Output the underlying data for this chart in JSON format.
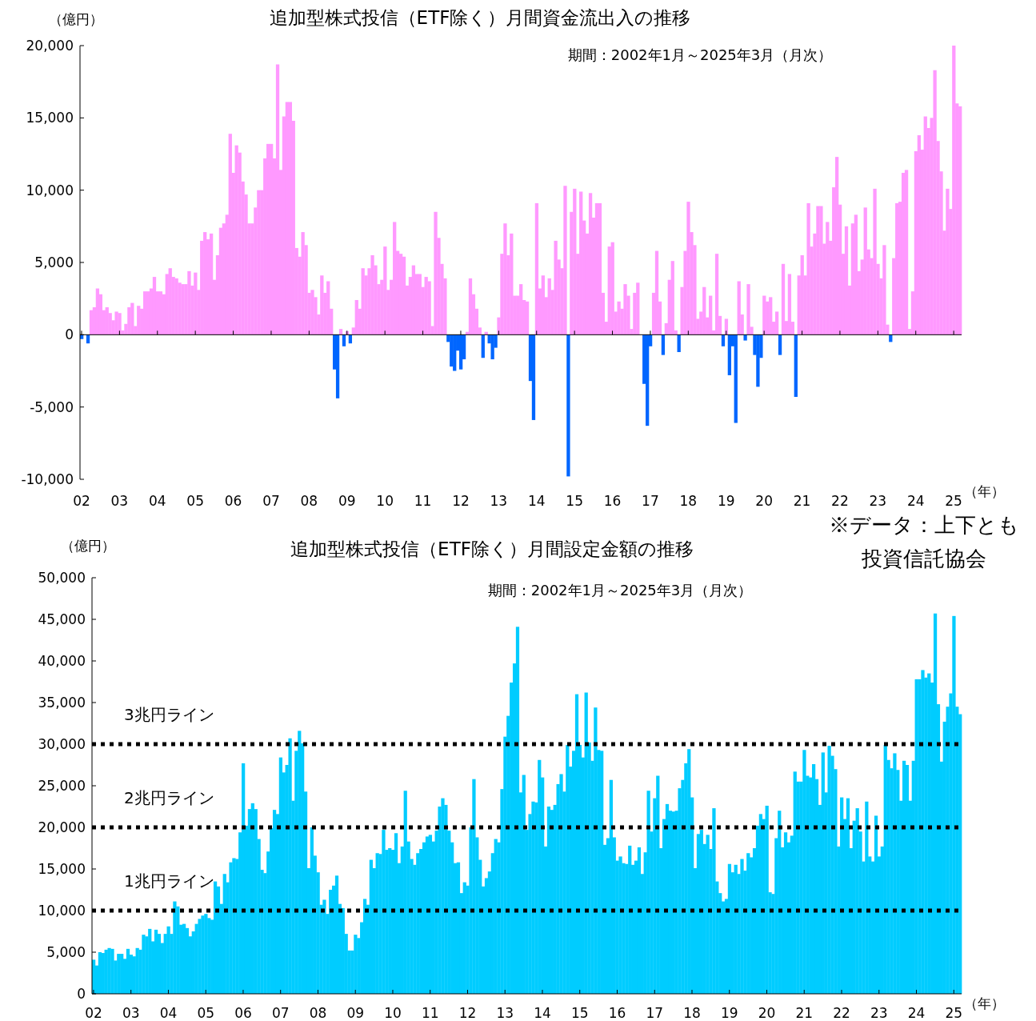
{
  "chart_data": [
    {
      "type": "bar",
      "title": "追加型株式投信（ETF除く）月間資金流出入の推移",
      "subtitle": "期間：2002年1月～2025年3月（月次）",
      "ylabel": "（億円）",
      "xlabel": "（年）",
      "categories": [
        "02",
        null,
        null,
        null,
        null,
        null,
        null,
        null,
        null,
        null,
        null,
        null,
        "03",
        null,
        null,
        null,
        null,
        null,
        null,
        null,
        null,
        null,
        null,
        null,
        "04",
        null,
        null,
        null,
        null,
        null,
        null,
        null,
        null,
        null,
        null,
        null,
        "05",
        null,
        null,
        null,
        null,
        null,
        null,
        null,
        null,
        null,
        null,
        null,
        "06",
        null,
        null,
        null,
        null,
        null,
        null,
        null,
        null,
        null,
        null,
        null,
        "07",
        null,
        null,
        null,
        null,
        null,
        null,
        null,
        null,
        null,
        null,
        null,
        "08",
        null,
        null,
        null,
        null,
        null,
        null,
        null,
        null,
        null,
        null,
        null,
        "09",
        null,
        null,
        null,
        null,
        null,
        null,
        null,
        null,
        null,
        null,
        null,
        "10",
        null,
        null,
        null,
        null,
        null,
        null,
        null,
        null,
        null,
        null,
        null,
        "11",
        null,
        null,
        null,
        null,
        null,
        null,
        null,
        null,
        null,
        null,
        null,
        "12",
        null,
        null,
        null,
        null,
        null,
        null,
        null,
        null,
        null,
        null,
        null,
        "13",
        null,
        null,
        null,
        null,
        null,
        null,
        null,
        null,
        null,
        null,
        null,
        "14",
        null,
        null,
        null,
        null,
        null,
        null,
        null,
        null,
        null,
        null,
        null,
        "15",
        null,
        null,
        null,
        null,
        null,
        null,
        null,
        null,
        null,
        null,
        null,
        "16",
        null,
        null,
        null,
        null,
        null,
        null,
        null,
        null,
        null,
        null,
        null,
        "17",
        null,
        null,
        null,
        null,
        null,
        null,
        null,
        null,
        null,
        null,
        null,
        "18",
        null,
        null,
        null,
        null,
        null,
        null,
        null,
        null,
        null,
        null,
        null,
        "19",
        null,
        null,
        null,
        null,
        null,
        null,
        null,
        null,
        null,
        null,
        null,
        "20",
        null,
        null,
        null,
        null,
        null,
        null,
        null,
        null,
        null,
        null,
        null,
        "21",
        null,
        null,
        null,
        null,
        null,
        null,
        null,
        null,
        null,
        null,
        null,
        "22",
        null,
        null,
        null,
        null,
        null,
        null,
        null,
        null,
        null,
        null,
        null,
        "23",
        null,
        null,
        null,
        null,
        null,
        null,
        null,
        null,
        null,
        null,
        null,
        "24",
        null,
        null,
        null,
        null,
        null,
        null,
        null,
        null,
        null,
        null,
        null,
        "25",
        null,
        null
      ],
      "series": [
        {
          "values": [
            -300,
            null,
            -600,
            1700,
            1900,
            3200,
            2800,
            1700,
            1900,
            1500,
            1000,
            1600,
            1500,
            300,
            750,
            1900,
            2200,
            600,
            2000,
            1800,
            3000,
            3000,
            3200,
            4000,
            3000,
            3000,
            2800,
            4200,
            4600,
            4000,
            3900,
            3600,
            3500,
            3500,
            4400,
            3400,
            4300,
            3100,
            6500,
            7100,
            6600,
            7000,
            3800,
            5500,
            7400,
            7700,
            8300,
            13900,
            11200,
            13100,
            12600,
            10600,
            9700,
            7700,
            7700,
            8800,
            10000,
            10000,
            12200,
            13200,
            13200,
            12200,
            18700,
            11400,
            15100,
            16100,
            16100,
            14800,
            6000,
            5400,
            7100,
            6200,
            2900,
            3100,
            2600,
            1400,
            4100,
            2900,
            3700,
            1800,
            -2400,
            -4400,
            400,
            -800,
            250,
            -600,
            500,
            2400,
            1800,
            4600,
            4100,
            4600,
            5500,
            4800,
            3500,
            3800,
            6100,
            3100,
            3800,
            7800,
            5800,
            5600,
            5400,
            3400,
            4000,
            4800,
            4200,
            4200,
            3300,
            4000,
            3700,
            600,
            8500,
            6700,
            4900,
            3900,
            -500,
            -2200,
            -2500,
            -1100,
            -2400,
            -1700,
            200,
            3900,
            2800,
            1800,
            500,
            -1600,
            200,
            -600,
            -1700,
            -900,
            1200,
            5600,
            7700,
            5500,
            7000,
            2700,
            2700,
            3500,
            2400,
            2300,
            -3200,
            -5900,
            9100,
            3200,
            4100,
            2600,
            3900,
            3100,
            6500,
            5200,
            4600,
            10300,
            -9800,
            8500,
            10100,
            5600,
            9900,
            7900,
            7000,
            9800,
            8100,
            9100,
            9100,
            2900,
            900,
            6100,
            6400,
            1600,
            2300,
            1800,
            3500,
            2700,
            400,
            2900,
            3600,
            0,
            -3400,
            -6300,
            -800,
            2900,
            5800,
            2300,
            -1400,
            800,
            3800,
            5100,
            300,
            -1200,
            3300,
            5800,
            9200,
            7100,
            6200,
            1100,
            1600,
            3300,
            1200,
            2700,
            300,
            5600,
            1300,
            -800,
            1100,
            -2800,
            -800,
            -6100,
            3700,
            1400,
            -400,
            3500,
            550,
            -1400,
            -3600,
            -1600,
            2700,
            2300,
            2600,
            900,
            1600,
            -1400,
            4900,
            950,
            4200,
            900,
            -4300,
            4100,
            5500,
            4100,
            9100,
            6100,
            7000,
            8900,
            8900,
            6300,
            7800,
            6500,
            10200,
            12300,
            9000,
            5600,
            7500,
            3400,
            7700,
            8300,
            4400,
            5200,
            8800,
            5900,
            5300,
            10100,
            4900,
            3900,
            6200,
            700,
            -500,
            5300,
            9100,
            9200,
            11200,
            11400,
            400,
            3000,
            12700,
            13800,
            12800,
            15100,
            14300,
            15000,
            18300,
            13400,
            11300,
            7200,
            10100,
            8700,
            20000,
            16000,
            15800
          ],
          "colors": [
            "#0066ff",
            "#ff99ff",
            "#0066ff",
            "#ff99ff",
            "#ff99ff",
            "#ff99ff",
            "#ff99ff",
            "#ff99ff",
            "#ff99ff",
            "#ff99ff",
            "#ff99ff",
            "#ff99ff",
            "#ff99ff",
            "#ff99ff",
            "#ff99ff",
            "#ff99ff",
            "#ff99ff",
            "#ff99ff",
            "#ff99ff",
            "#ff99ff",
            "#ff99ff",
            "#ff99ff",
            "#ff99ff",
            "#ff99ff",
            "#ff99ff",
            "#ff99ff",
            "#ff99ff",
            "#ff99ff",
            "#ff99ff",
            "#ff99ff",
            "#ff99ff",
            "#ff99ff",
            "#ff99ff",
            "#ff99ff",
            "#ff99ff",
            "#ff99ff",
            "#ff99ff",
            "#ff99ff",
            "#ff99ff",
            "#ff99ff",
            "#ff99ff",
            "#ff99ff",
            "#ff99ff",
            "#ff99ff",
            "#ff99ff",
            "#ff99ff",
            "#ff99ff",
            "#ff99ff",
            "#ff99ff",
            "#ff99ff",
            "#ff99ff",
            "#ff99ff",
            "#ff99ff",
            "#ff99ff",
            "#ff99ff",
            "#ff99ff",
            "#ff99ff",
            "#ff99ff",
            "#ff99ff",
            "#ff99ff",
            "#ff99ff",
            "#ff99ff",
            "#ff99ff",
            "#ff99ff",
            "#ff99ff",
            "#ff99ff",
            "#ff99ff",
            "#ff99ff",
            "#ff99ff",
            "#ff99ff",
            "#ff99ff",
            "#ff99ff",
            "#ff99ff",
            "#ff99ff",
            "#ff99ff",
            "#ff99ff",
            "#ff99ff",
            "#ff99ff",
            "#ff99ff",
            "#ff99ff",
            "#0066ff",
            "#0066ff",
            "#ff99ff",
            "#0066ff",
            "#ff99ff",
            "#0066ff",
            "#ff99ff",
            "#ff99ff",
            "#ff99ff",
            "#ff99ff",
            "#ff99ff",
            "#ff99ff",
            "#ff99ff",
            "#ff99ff",
            "#ff99ff",
            "#ff99ff",
            "#ff99ff",
            "#ff99ff",
            "#ff99ff",
            "#ff99ff",
            "#ff99ff",
            "#ff99ff",
            "#ff99ff",
            "#ff99ff",
            "#ff99ff",
            "#ff99ff",
            "#ff99ff",
            "#ff99ff",
            "#ff99ff",
            "#ff99ff",
            "#ff99ff",
            "#ff99ff",
            "#ff99ff",
            "#ff99ff",
            "#ff99ff",
            "#ff99ff",
            "#0066ff",
            "#0066ff",
            "#0066ff",
            "#0066ff",
            "#0066ff",
            "#0066ff",
            "#ff99ff",
            "#ff99ff",
            "#ff99ff",
            "#ff99ff",
            "#ff99ff",
            "#0066ff",
            "#ff99ff",
            "#0066ff",
            "#0066ff",
            "#0066ff",
            "#ff99ff",
            "#ff99ff",
            "#ff99ff",
            "#ff99ff",
            "#ff99ff",
            "#ff99ff",
            "#ff99ff",
            "#ff99ff",
            "#ff99ff",
            "#ff99ff",
            "#0066ff",
            "#0066ff",
            "#ff99ff",
            "#ff99ff",
            "#ff99ff",
            "#ff99ff",
            "#ff99ff",
            "#ff99ff",
            "#ff99ff",
            "#ff99ff",
            "#ff99ff",
            "#ff99ff",
            "#0066ff",
            "#ff99ff",
            "#ff99ff",
            "#ff99ff",
            "#ff99ff",
            "#ff99ff",
            "#ff99ff",
            "#ff99ff",
            "#ff99ff",
            "#ff99ff",
            "#ff99ff",
            "#ff99ff",
            "#ff99ff",
            "#ff99ff",
            "#ff99ff",
            "#ff99ff",
            "#ff99ff",
            "#ff99ff",
            "#ff99ff",
            "#ff99ff",
            "#ff99ff",
            "#ff99ff",
            "#ff99ff",
            "#ff99ff",
            "#0066ff",
            "#0066ff",
            "#0066ff",
            "#ff99ff",
            "#ff99ff",
            "#ff99ff",
            "#0066ff",
            "#ff99ff",
            "#ff99ff",
            "#ff99ff",
            "#ff99ff",
            "#0066ff",
            "#ff99ff",
            "#ff99ff",
            "#ff99ff",
            "#ff99ff",
            "#ff99ff",
            "#ff99ff",
            "#ff99ff",
            "#ff99ff",
            "#ff99ff",
            "#ff99ff",
            "#ff99ff",
            "#ff99ff",
            "#ff99ff",
            "#0066ff",
            "#ff99ff",
            "#0066ff",
            "#0066ff",
            "#0066ff",
            "#ff99ff",
            "#ff99ff",
            "#0066ff",
            "#ff99ff",
            "#ff99ff",
            "#0066ff",
            "#0066ff",
            "#0066ff",
            "#ff99ff",
            "#ff99ff",
            "#ff99ff",
            "#ff99ff",
            "#ff99ff",
            "#0066ff",
            "#ff99ff",
            "#ff99ff",
            "#ff99ff",
            "#ff99ff",
            "#0066ff",
            "#ff99ff",
            "#ff99ff",
            "#ff99ff",
            "#ff99ff",
            "#ff99ff",
            "#ff99ff",
            "#ff99ff",
            "#ff99ff",
            "#ff99ff",
            "#ff99ff",
            "#ff99ff",
            "#ff99ff",
            "#ff99ff",
            "#ff99ff",
            "#ff99ff",
            "#ff99ff",
            "#ff99ff",
            "#ff99ff",
            "#ff99ff",
            "#ff99ff",
            "#ff99ff",
            "#ff99ff",
            "#ff99ff",
            "#ff99ff",
            "#ff99ff",
            "#ff99ff",
            "#ff99ff",
            "#ff99ff",
            "#ff99ff",
            "#0066ff",
            "#ff99ff",
            "#ff99ff",
            "#ff99ff",
            "#ff99ff",
            "#ff99ff",
            "#ff99ff",
            "#ff99ff",
            "#ff99ff",
            "#ff99ff",
            "#ff99ff",
            "#ff99ff",
            "#ff99ff",
            "#ff99ff",
            "#ff99ff",
            "#ff99ff",
            "#ff99ff",
            "#ff99ff",
            "#ff99ff",
            "#ff99ff",
            "#ff99ff",
            "#ff99ff",
            "#ff99ff"
          ]
        }
      ],
      "ylim": [
        -10000,
        20000
      ],
      "yticks": [
        {
          "value": -10000,
          "label": "-10,000"
        },
        {
          "value": -5000,
          "label": "-5,000"
        },
        0,
        {
          "value": 5000,
          "label": "5,000"
        },
        {
          "value": 10000,
          "label": "10,000"
        },
        {
          "value": 15000,
          "label": "15,000"
        },
        {
          "value": 20000,
          "label": "20,000"
        }
      ],
      "annotations": [
        "※データ：上下とも投資信託協会"
      ]
    },
    {
      "type": "bar",
      "title": "追加型株式投信（ETF除く）月間設定金額の推移",
      "subtitle": "期間：2002年1月～2025年3月（月次）",
      "ylabel": "（億円）",
      "xlabel": "（年）",
      "categories": [
        "02",
        null,
        null,
        null,
        null,
        null,
        null,
        null,
        null,
        null,
        null,
        null,
        "03",
        null,
        null,
        null,
        null,
        null,
        null,
        null,
        null,
        null,
        null,
        null,
        "04",
        null,
        null,
        null,
        null,
        null,
        null,
        null,
        null,
        null,
        null,
        null,
        "05",
        null,
        null,
        null,
        null,
        null,
        null,
        null,
        null,
        null,
        null,
        null,
        "06",
        null,
        null,
        null,
        null,
        null,
        null,
        null,
        null,
        null,
        null,
        null,
        "07",
        null,
        null,
        null,
        null,
        null,
        null,
        null,
        null,
        null,
        null,
        null,
        "08",
        null,
        null,
        null,
        null,
        null,
        null,
        null,
        null,
        null,
        null,
        null,
        "09",
        null,
        null,
        null,
        null,
        null,
        null,
        null,
        null,
        null,
        null,
        null,
        "10",
        null,
        null,
        null,
        null,
        null,
        null,
        null,
        null,
        null,
        null,
        null,
        "11",
        null,
        null,
        null,
        null,
        null,
        null,
        null,
        null,
        null,
        null,
        null,
        "12",
        null,
        null,
        null,
        null,
        null,
        null,
        null,
        null,
        null,
        null,
        null,
        "13",
        null,
        null,
        null,
        null,
        null,
        null,
        null,
        null,
        null,
        null,
        null,
        "14",
        null,
        null,
        null,
        null,
        null,
        null,
        null,
        null,
        null,
        null,
        null,
        "15",
        null,
        null,
        null,
        null,
        null,
        null,
        null,
        null,
        null,
        null,
        null,
        "16",
        null,
        null,
        null,
        null,
        null,
        null,
        null,
        null,
        null,
        null,
        null,
        "17",
        null,
        null,
        null,
        null,
        null,
        null,
        null,
        null,
        null,
        null,
        null,
        "18",
        null,
        null,
        null,
        null,
        null,
        null,
        null,
        null,
        null,
        null,
        null,
        "19",
        null,
        null,
        null,
        null,
        null,
        null,
        null,
        null,
        null,
        null,
        null,
        "20",
        null,
        null,
        null,
        null,
        null,
        null,
        null,
        null,
        null,
        null,
        null,
        "21",
        null,
        null,
        null,
        null,
        null,
        null,
        null,
        null,
        null,
        null,
        null,
        "22",
        null,
        null,
        null,
        null,
        null,
        null,
        null,
        null,
        null,
        null,
        null,
        "23",
        null,
        null,
        null,
        null,
        null,
        null,
        null,
        null,
        null,
        null,
        null,
        "24",
        null,
        null,
        null,
        null,
        null,
        null,
        null,
        null,
        null,
        null,
        null,
        "25",
        null,
        null
      ],
      "series": [
        {
          "color": "#00ccff",
          "values": [
            4100,
            3400,
            5000,
            4900,
            5300,
            5500,
            5400,
            4000,
            4800,
            4800,
            4200,
            5400,
            4700,
            4500,
            5500,
            5300,
            7100,
            6900,
            7800,
            6300,
            7700,
            7200,
            6100,
            7200,
            8100,
            7200,
            11100,
            10500,
            8300,
            8400,
            7900,
            6900,
            7500,
            8400,
            9000,
            9400,
            9600,
            9100,
            8900,
            13500,
            12900,
            10800,
            14400,
            13400,
            15800,
            16300,
            16200,
            19400,
            27700,
            20200,
            22200,
            22900,
            22200,
            18600,
            14900,
            14500,
            17100,
            19900,
            22100,
            21600,
            28400,
            26600,
            27500,
            30700,
            23200,
            29200,
            31600,
            30100,
            24300,
            15100,
            20000,
            16600,
            14600,
            10700,
            11300,
            9600,
            12500,
            13000,
            14200,
            10800,
            10300,
            7200,
            5200,
            5200,
            7100,
            6700,
            8600,
            11400,
            10700,
            16100,
            15100,
            16900,
            16800,
            19700,
            17300,
            17500,
            17300,
            19300,
            15700,
            17700,
            24400,
            18300,
            16200,
            15500,
            16900,
            17400,
            18200,
            18900,
            19100,
            18300,
            19600,
            22500,
            23500,
            22700,
            19600,
            18200,
            15700,
            15800,
            12100,
            13400,
            13000,
            20000,
            25800,
            18800,
            16100,
            12900,
            13900,
            14700,
            16900,
            18600,
            18200,
            24600,
            30900,
            33400,
            37400,
            39700,
            44100,
            24200,
            26300,
            19700,
            21600,
            23100,
            23000,
            28100,
            26000,
            17700,
            22500,
            22100,
            22700,
            25200,
            26400,
            24300,
            29900,
            27300,
            29200,
            36000,
            29900,
            28400,
            36200,
            30200,
            28000,
            34400,
            29300,
            29200,
            17900,
            18700,
            25700,
            18800,
            16000,
            16500,
            15700,
            15600,
            17800,
            15500,
            16000,
            17600,
            14400,
            17000,
            24400,
            19500,
            23500,
            26200,
            17500,
            21000,
            22800,
            22000,
            21900,
            22000,
            24700,
            25700,
            27700,
            29400,
            23600,
            15100,
            19200,
            19700,
            18000,
            19100,
            17400,
            22300,
            13500,
            12100,
            11100,
            11400,
            15600,
            14600,
            15500,
            14400,
            16200,
            14800,
            16900,
            16400,
            17500,
            20200,
            21600,
            21000,
            22600,
            12200,
            12000,
            18700,
            22000,
            17600,
            19400,
            18200,
            19000,
            26700,
            25500,
            25500,
            29300,
            26200,
            26000,
            27600,
            25800,
            22700,
            29000,
            24200,
            29800,
            28600,
            27000,
            17700,
            23600,
            21000,
            23500,
            17500,
            20800,
            22300,
            19500,
            15900,
            23100,
            16500,
            15900,
            21400,
            16500,
            17700,
            29900,
            28100,
            27100,
            28900,
            26900,
            23200,
            28000,
            27500,
            23200,
            28000,
            37800,
            37800,
            38900,
            38000,
            38500,
            37400,
            45700,
            34800,
            27900,
            32700,
            34500,
            36100,
            45400,
            34500,
            33600
          ]
        }
      ],
      "ylim": [
        0,
        50000
      ],
      "yticks": [
        0,
        {
          "value": 5000,
          "label": "5,000"
        },
        {
          "value": 10000,
          "label": "10,000"
        },
        {
          "value": 15000,
          "label": "15,000"
        },
        {
          "value": 20000,
          "label": "20,000"
        },
        {
          "value": 25000,
          "label": "25,000"
        },
        {
          "value": 30000,
          "label": "30,000"
        },
        {
          "value": 35000,
          "label": "35,000"
        },
        {
          "value": 40000,
          "label": "40,000"
        },
        {
          "value": 45000,
          "label": "45,000"
        },
        {
          "value": 50000,
          "label": "50,000"
        }
      ],
      "ref_lines": [
        {
          "axis": "y",
          "value": 30000,
          "label": "3兆円ライン",
          "color": "#000000",
          "line_style": "dotted"
        },
        {
          "axis": "y",
          "value": 20000,
          "label": "2兆円ライン",
          "color": "#000000",
          "line_style": "dotted"
        },
        {
          "axis": "y",
          "value": 10000,
          "label": "1兆円ライン",
          "color": "#000000",
          "line_style": "dotted"
        }
      ]
    }
  ]
}
